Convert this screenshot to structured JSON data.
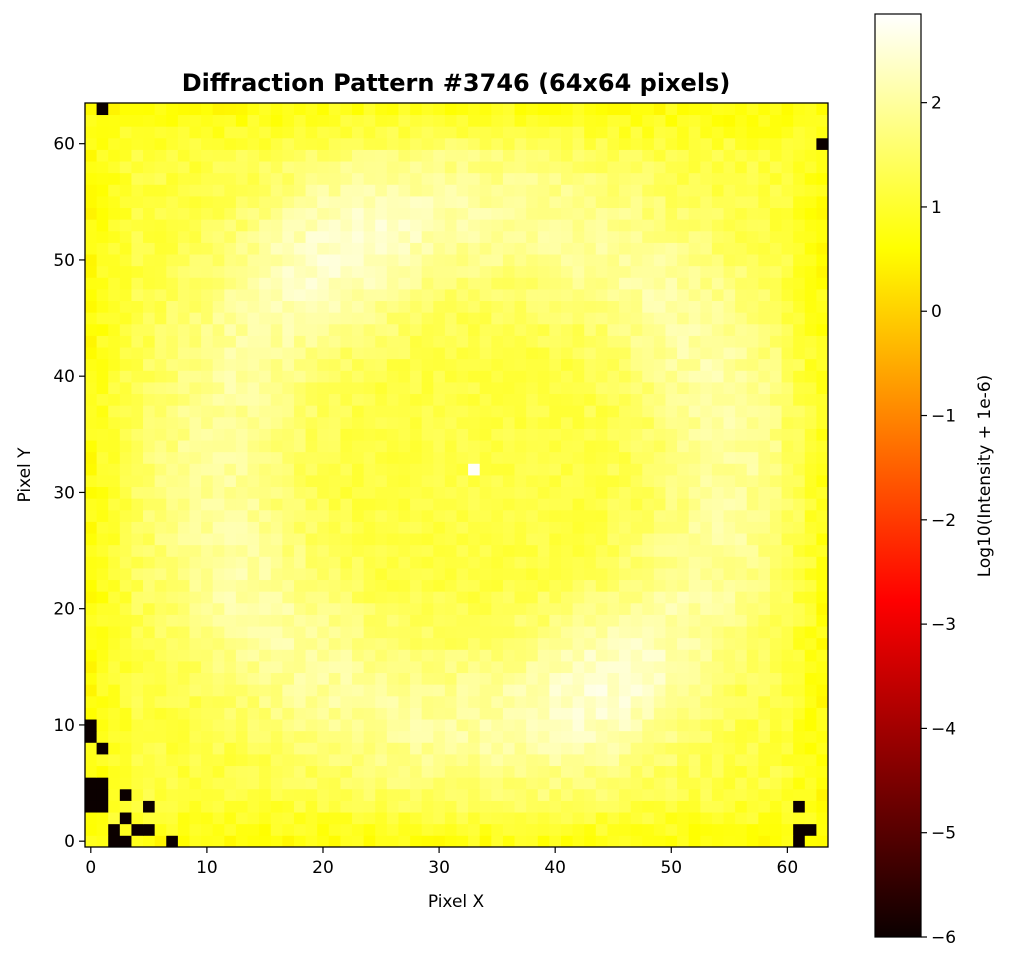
{
  "chart_data": {
    "type": "heatmap",
    "title": "Diffraction Pattern #3746 (64x64 pixels)",
    "xlabel": "Pixel X",
    "ylabel": "Pixel Y",
    "grid_size": [
      64,
      64
    ],
    "xlim": [
      -0.5,
      63.5
    ],
    "ylim": [
      -0.5,
      63.5
    ],
    "x_ticks": [
      0,
      10,
      20,
      30,
      40,
      50,
      60
    ],
    "y_ticks": [
      0,
      10,
      20,
      30,
      40,
      50,
      60
    ],
    "colormap": "hot",
    "colorbar": {
      "label": "Log10(Intensity + 1e-6)",
      "range": [
        -6,
        2.85
      ],
      "ticks": [
        -6,
        -5,
        -4,
        -3,
        -2,
        -1,
        0,
        1,
        2
      ]
    },
    "pattern": {
      "center": [
        33,
        32
      ],
      "central_disk_radius": 11,
      "central_disk_level": 1.2,
      "central_peak": {
        "x": 33,
        "y": 32,
        "level": 2.8
      },
      "ring_level": 2.1,
      "ring_arcs": [
        {
          "angle_deg": 120,
          "radius": 22,
          "level": 2.6
        },
        {
          "angle_deg": -60,
          "radius": 22,
          "level": 2.6
        },
        {
          "angle_deg": 30,
          "radius": 24,
          "level": 2.2
        },
        {
          "angle_deg": 210,
          "radius": 24,
          "level": 2.2
        }
      ],
      "background_level": 1.15,
      "dark_pixels": [
        [
          1,
          63
        ],
        [
          63,
          60
        ],
        [
          0,
          10
        ],
        [
          0,
          9
        ],
        [
          1,
          8
        ],
        [
          0,
          5
        ],
        [
          1,
          5
        ],
        [
          0,
          4
        ],
        [
          1,
          4
        ],
        [
          0,
          3
        ],
        [
          1,
          3
        ],
        [
          3,
          4
        ],
        [
          5,
          3
        ],
        [
          3,
          2
        ],
        [
          2,
          1
        ],
        [
          4,
          1
        ],
        [
          5,
          1
        ],
        [
          2,
          0
        ],
        [
          3,
          0
        ],
        [
          7,
          0
        ],
        [
          61,
          3
        ],
        [
          61,
          1
        ],
        [
          62,
          1
        ],
        [
          61,
          0
        ]
      ]
    }
  }
}
